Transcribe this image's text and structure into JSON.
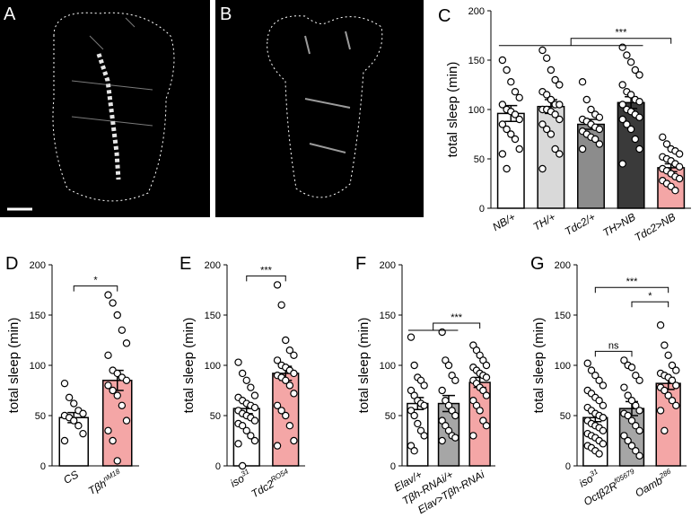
{
  "images": [
    {
      "panel": "A"
    },
    {
      "panel": "B"
    }
  ],
  "chart_data": [
    {
      "type": "bar",
      "panel": "C",
      "ylabel": "total sleep (min)",
      "categories": [
        "NB/+",
        "TH/+",
        "Tdc2/+",
        "TH>NB",
        "Tdc2>NB"
      ],
      "values": [
        96,
        103,
        85,
        107,
        41
      ],
      "errors": [
        8,
        7,
        5,
        6,
        4
      ],
      "colors": [
        "#ffffff",
        "#d9d9d9",
        "#8c8c8c",
        "#3a3a3a",
        "#f4a6a6"
      ],
      "points": [
        [
          150,
          140,
          128,
          118,
          112,
          105,
          100,
          98,
          95,
          90,
          85,
          80,
          75,
          70,
          60,
          55,
          40
        ],
        [
          160,
          152,
          140,
          130,
          125,
          118,
          115,
          110,
          105,
          105,
          100,
          100,
          98,
          95,
          90,
          85,
          80,
          75,
          60,
          55,
          40
        ],
        [
          128,
          110,
          100,
          95,
          92,
          90,
          88,
          85,
          82,
          80,
          78,
          75,
          72,
          70,
          65,
          60
        ],
        [
          163,
          155,
          148,
          140,
          135,
          125,
          118,
          115,
          110,
          108,
          105,
          100,
          98,
          95,
          92,
          90,
          85,
          80,
          70,
          60,
          45
        ],
        [
          72,
          65,
          60,
          58,
          55,
          52,
          50,
          48,
          45,
          42,
          40,
          38,
          35,
          32,
          30,
          28,
          25,
          22,
          18
        ]
      ],
      "ylim": [
        0,
        200
      ],
      "yticks": [
        0,
        50,
        100,
        150,
        200
      ],
      "comparisons": [
        {
          "left": [
            "NB/+",
            "TH>NB"
          ],
          "right": [
            "Tdc2>NB"
          ],
          "label": "***"
        }
      ]
    },
    {
      "type": "bar",
      "panel": "D",
      "ylabel": "total sleep (min)",
      "categories": [
        "CS",
        "Tβh"
      ],
      "label_sup": [
        null,
        "nM18"
      ],
      "values": [
        48,
        85
      ],
      "errors": [
        5,
        10
      ],
      "colors": [
        "#ffffff",
        "#f4a6a6"
      ],
      "points": [
        [
          82,
          68,
          62,
          55,
          52,
          50,
          48,
          45,
          40,
          32,
          25
        ],
        [
          170,
          162,
          150,
          135,
          122,
          110,
          95,
          92,
          88,
          85,
          80,
          75,
          70,
          60,
          45,
          35,
          25,
          5
        ]
      ],
      "ylim": [
        0,
        200
      ],
      "yticks": [
        0,
        50,
        100,
        150,
        200
      ],
      "comparisons": [
        {
          "left": [
            "CS"
          ],
          "right": [
            "Tβh"
          ],
          "label": "*"
        }
      ]
    },
    {
      "type": "bar",
      "panel": "E",
      "ylabel": "total sleep (min)",
      "categories": [
        "iso",
        "Tdc2"
      ],
      "label_sup": [
        "31",
        "RO54"
      ],
      "values": [
        57,
        92
      ],
      "errors": [
        5,
        7
      ],
      "colors": [
        "#ffffff",
        "#f4a6a6"
      ],
      "points": [
        [
          103,
          92,
          85,
          78,
          70,
          68,
          65,
          62,
          60,
          58,
          55,
          52,
          50,
          48,
          45,
          42,
          40,
          35,
          30,
          25,
          22,
          0
        ],
        [
          180,
          160,
          125,
          115,
          110,
          105,
          100,
          98,
          95,
          92,
          90,
          88,
          85,
          80,
          72,
          60,
          55,
          50,
          40,
          25,
          20
        ]
      ],
      "ylim": [
        0,
        200
      ],
      "yticks": [
        0,
        50,
        100,
        150,
        200
      ],
      "comparisons": [
        {
          "left": [
            "iso"
          ],
          "right": [
            "Tdc2"
          ],
          "label": "***"
        }
      ]
    },
    {
      "type": "bar",
      "panel": "F",
      "ylabel": "total sleep (min)",
      "categories": [
        "Elav/+",
        "Tβh-RNAi/+",
        "Elav>Tβh-RNAi"
      ],
      "values": [
        62,
        62,
        83
      ],
      "errors": [
        6,
        8,
        5
      ],
      "colors": [
        "#ffffff",
        "#a6a6a6",
        "#f4a6a6"
      ],
      "points": [
        [
          128,
          100,
          88,
          85,
          80,
          75,
          70,
          65,
          62,
          60,
          55,
          50,
          42,
          35,
          30,
          20,
          15
        ],
        [
          133,
          105,
          100,
          90,
          85,
          75,
          65,
          60,
          55,
          50,
          45,
          40,
          35,
          30,
          28,
          25
        ],
        [
          120,
          115,
          110,
          105,
          100,
          98,
          95,
          92,
          90,
          88,
          85,
          82,
          78,
          75,
          70,
          65,
          60,
          55,
          45,
          40,
          30
        ]
      ],
      "ylim": [
        0,
        200
      ],
      "yticks": [
        0,
        50,
        100,
        150,
        200
      ],
      "comparisons": [
        {
          "left": [
            "Elav/+",
            "Tβh-RNAi/+"
          ],
          "right": [
            "Elav>Tβh-RNAi"
          ],
          "label": "***"
        }
      ]
    },
    {
      "type": "bar",
      "panel": "G",
      "ylabel": "total sleep (min)",
      "categories": [
        "iso",
        "Octβ2R",
        "Oamb"
      ],
      "label_sup": [
        "31",
        "f05679",
        "286"
      ],
      "values": [
        48,
        57,
        82
      ],
      "errors": [
        4,
        7,
        6
      ],
      "colors": [
        "#ffffff",
        "#a6a6a6",
        "#f4a6a6"
      ],
      "points": [
        [
          102,
          95,
          90,
          85,
          80,
          75,
          72,
          68,
          65,
          60,
          58,
          55,
          52,
          50,
          48,
          45,
          42,
          40,
          38,
          35,
          32,
          30,
          28,
          25,
          22,
          20,
          18,
          15,
          12
        ],
        [
          105,
          100,
          98,
          90,
          85,
          78,
          70,
          65,
          60,
          55,
          52,
          50,
          45,
          40,
          35,
          30,
          25,
          20,
          15,
          10
        ],
        [
          140,
          120,
          110,
          100,
          95,
          92,
          90,
          88,
          85,
          80,
          78,
          75,
          70,
          65,
          60,
          55,
          35
        ]
      ],
      "ylim": [
        0,
        200
      ],
      "yticks": [
        0,
        50,
        100,
        150,
        200
      ],
      "comparisons": [
        {
          "left": [
            "iso"
          ],
          "right": [
            "Octβ2R"
          ],
          "label": "ns"
        },
        {
          "left": [
            "Octβ2R"
          ],
          "right": [
            "Oamb"
          ],
          "label": "*"
        },
        {
          "left": [
            "iso"
          ],
          "right": [
            "Oamb"
          ],
          "label": "***"
        }
      ]
    }
  ]
}
